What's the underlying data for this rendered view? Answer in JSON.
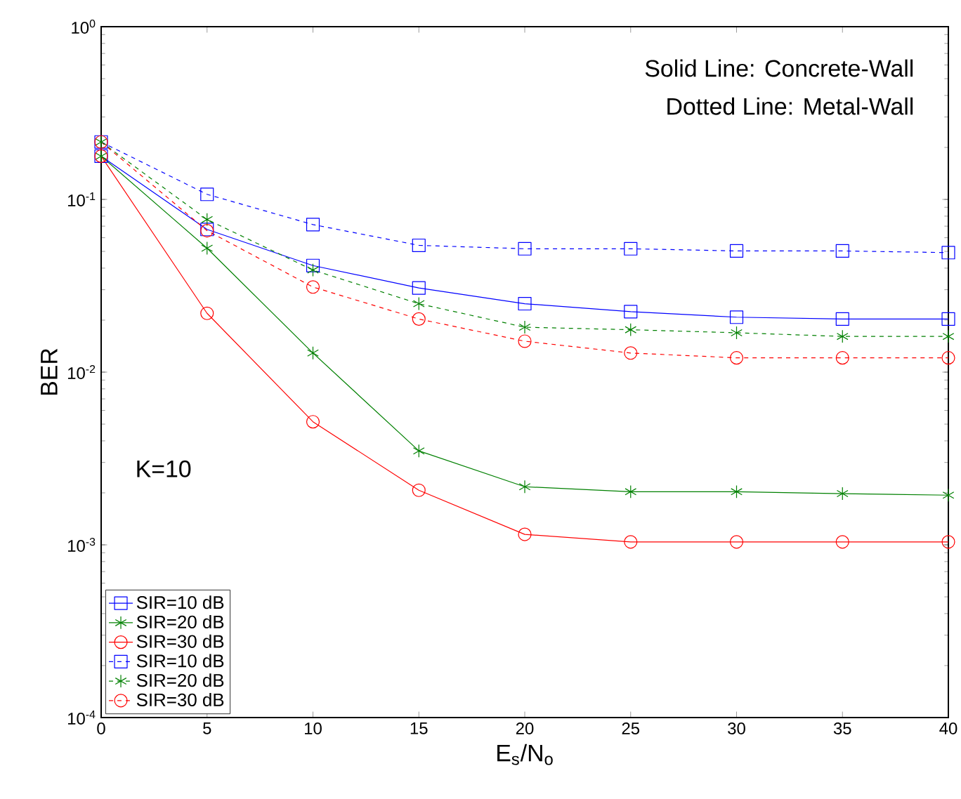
{
  "chart_data": {
    "type": "line",
    "xlabel": "E$_{s}$/N$_{o}$",
    "ylabel": "BER",
    "x": [
      0,
      5,
      10,
      15,
      20,
      25,
      30,
      35,
      40
    ],
    "xlim": [
      0,
      40
    ],
    "xticks": [
      0,
      5,
      10,
      15,
      20,
      25,
      30,
      35,
      40
    ],
    "ylim": [
      0.0001,
      1
    ],
    "log": "y",
    "yticks": [
      {
        "value": 0.0001,
        "label": "10$^{-4}$"
      },
      {
        "value": 0.001,
        "label": "10$^{-3}$"
      },
      {
        "value": 0.01,
        "label": "10$^{-2}$"
      },
      {
        "value": 0.1,
        "label": "10$^{-1}$"
      },
      {
        "value": 1,
        "label": "10$^{0}$"
      }
    ],
    "grid": false,
    "legend": "bottom left",
    "annotations": [
      "Solid Line: Concrete-Wall",
      "Dotted Line: Metal-Wall",
      "K=10"
    ],
    "series": [
      {
        "name": "SIR=10 dB",
        "color": "#0000ff",
        "marker": "square",
        "line_style": "solid",
        "values": [
          0.178,
          0.067,
          0.0414,
          0.0307,
          0.0249,
          0.0224,
          0.0208,
          0.0203,
          0.0203
        ]
      },
      {
        "name": "SIR=20 dB",
        "color": "#008000",
        "marker": "cross",
        "line_style": "solid",
        "values": [
          0.178,
          0.0522,
          0.0129,
          0.0035,
          0.00217,
          0.00203,
          0.00203,
          0.00198,
          0.00194
        ]
      },
      {
        "name": "SIR=30 dB",
        "color": "#ff0000",
        "marker": "circle",
        "line_style": "solid",
        "values": [
          0.178,
          0.0219,
          0.00516,
          0.00207,
          0.00115,
          0.00104,
          0.00104,
          0.00104,
          0.00104
        ]
      },
      {
        "name": "SIR=10 dB",
        "color": "#0000ff",
        "marker": "square",
        "line_style": "dashed",
        "values": [
          0.215,
          0.107,
          0.0715,
          0.0542,
          0.0518,
          0.0518,
          0.0503,
          0.0503,
          0.0492
        ]
      },
      {
        "name": "SIR=20 dB",
        "color": "#008000",
        "marker": "cross",
        "line_style": "dashed",
        "values": [
          0.215,
          0.0765,
          0.039,
          0.0249,
          0.0182,
          0.0176,
          0.0169,
          0.0161,
          0.0161
        ]
      },
      {
        "name": "SIR=30 dB",
        "color": "#ff0000",
        "marker": "circle",
        "line_style": "dashed",
        "values": [
          0.215,
          0.0659,
          0.0311,
          0.0203,
          0.0151,
          0.0129,
          0.0121,
          0.0121,
          0.0121
        ]
      }
    ]
  }
}
